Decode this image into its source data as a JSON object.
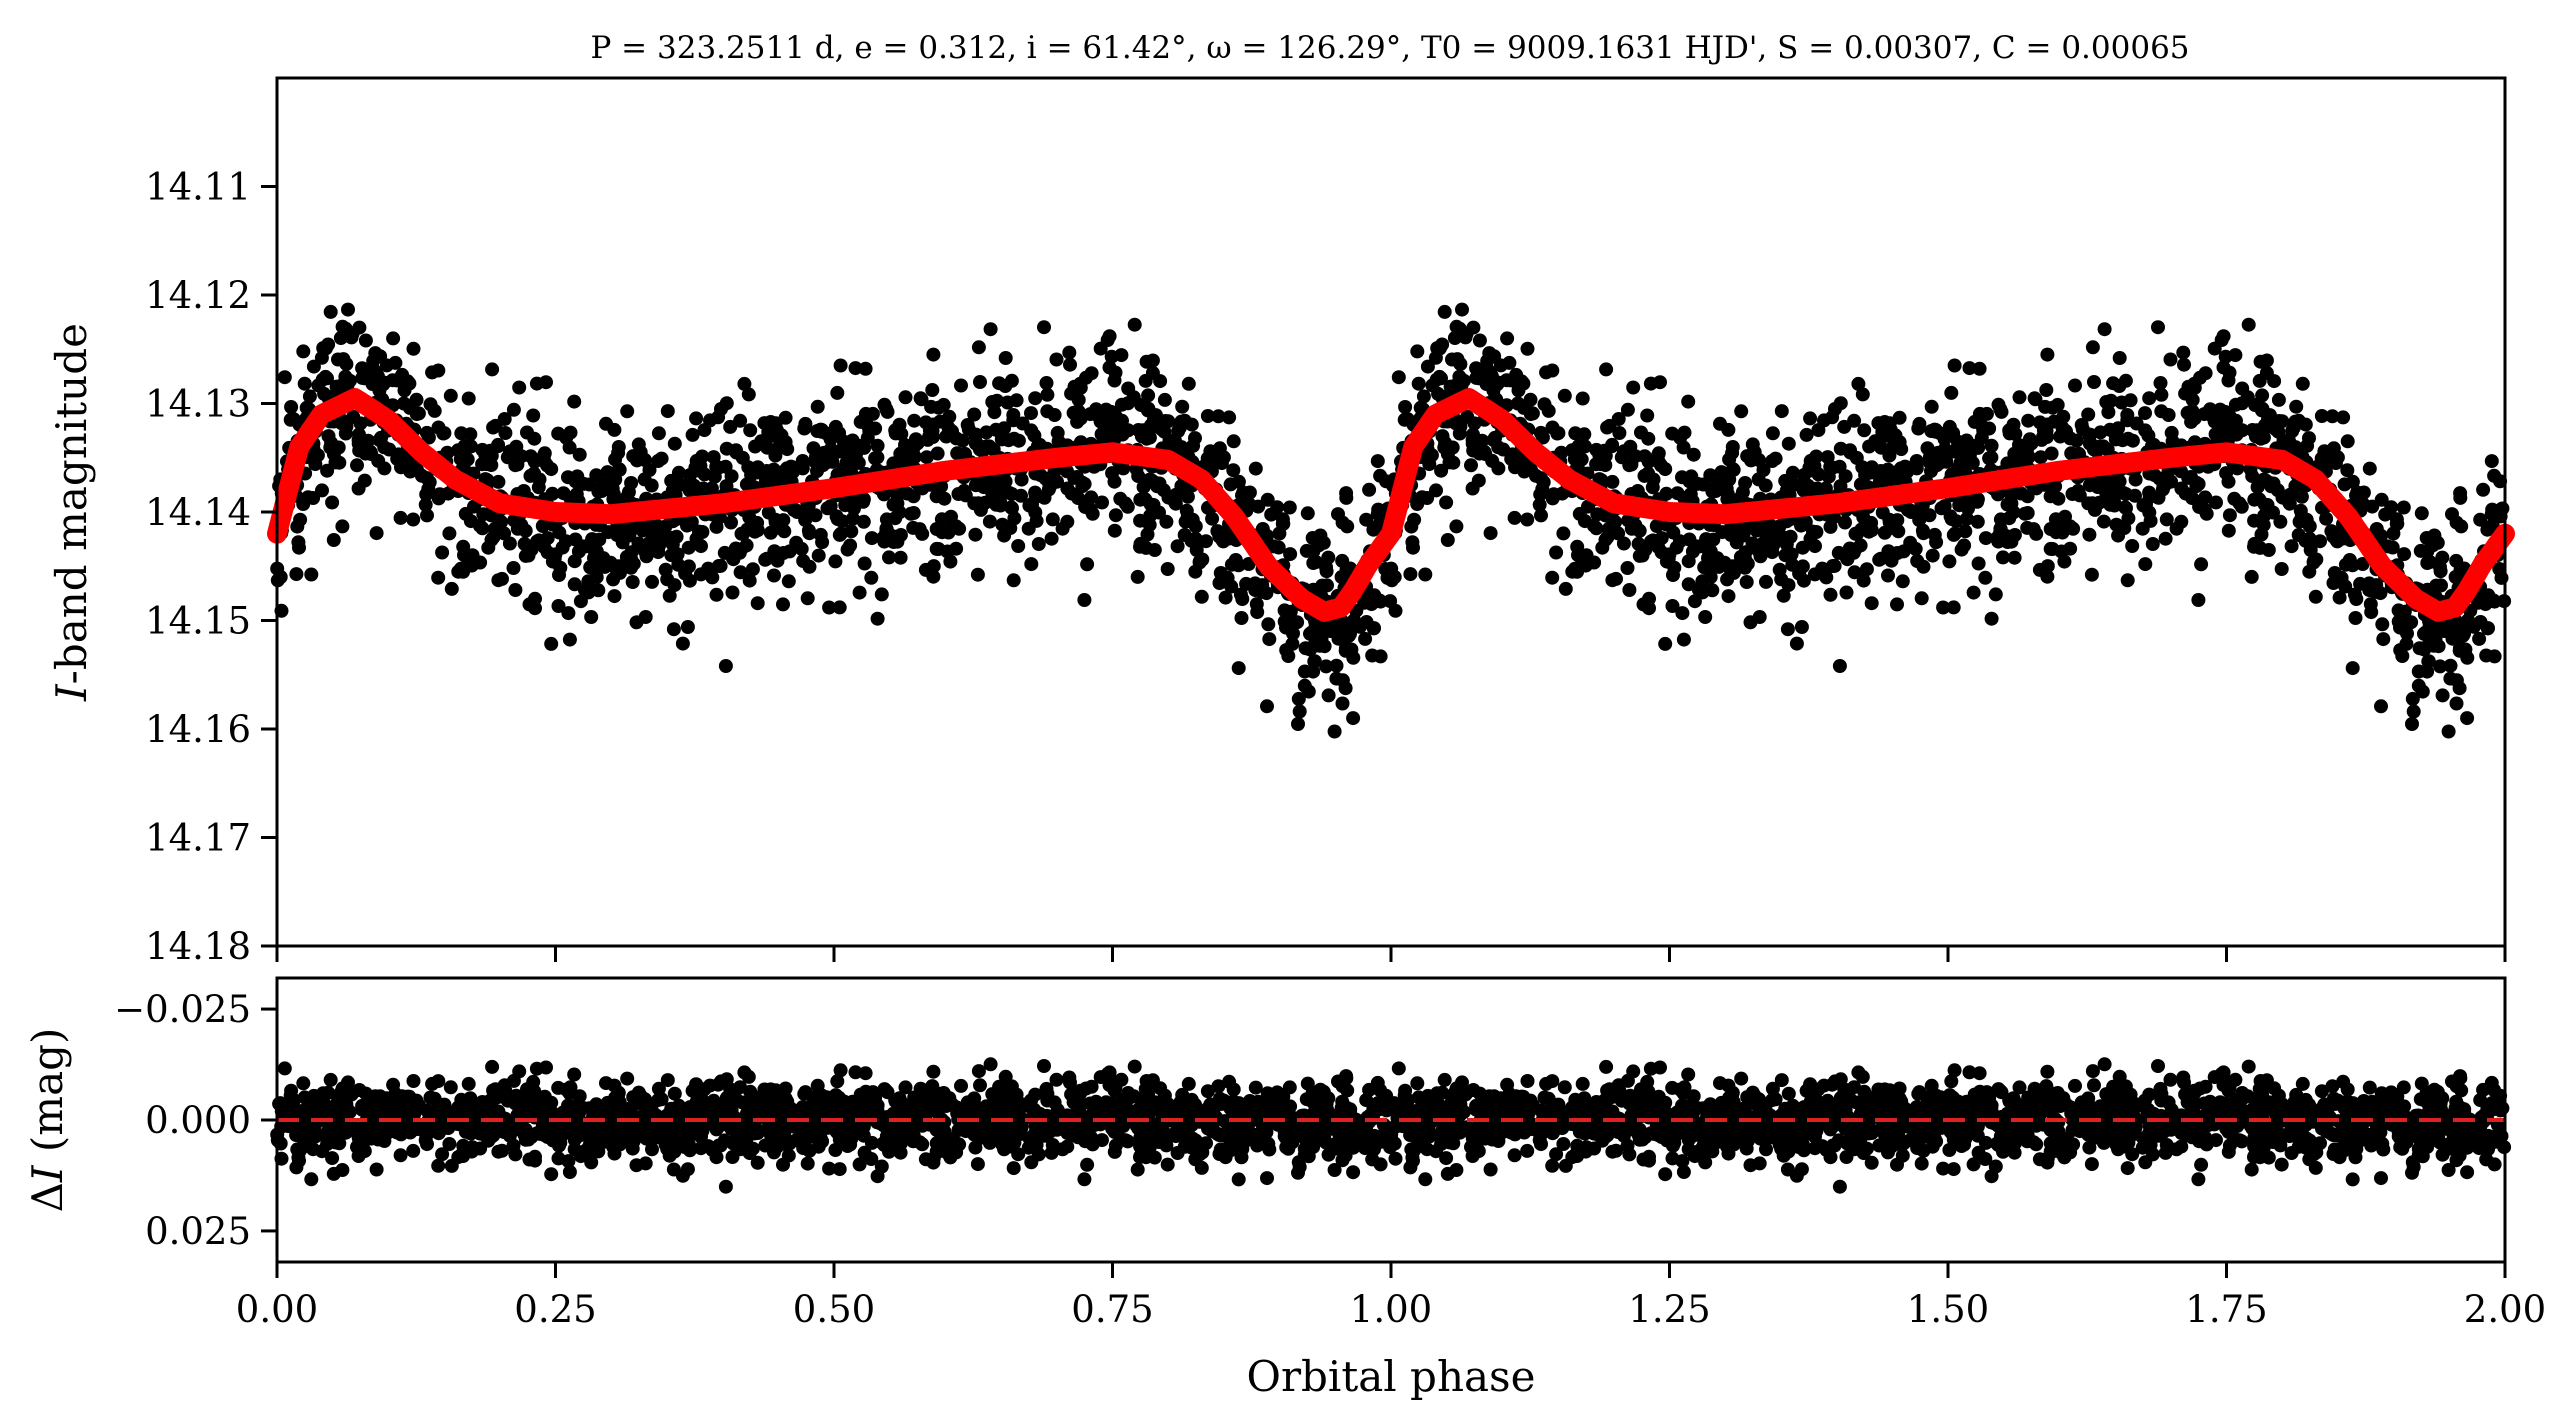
{
  "chart_data": [
    {
      "type": "scatter",
      "panel": "light-curve",
      "title": "P = 323.2511 d, e = 0.312, i = 61.42°, ω = 126.29°, T0 = 9009.1631 HJD', S = 0.00307, C = 0.00065",
      "xlabel": "",
      "ylabel": "I-band magnitude",
      "ylabel_italic_part": "I",
      "ylabel_rest": "-band magnitude",
      "xlim": [
        0.0,
        2.0
      ],
      "ylim": [
        14.18,
        14.1
      ],
      "y_inverted": true,
      "y_ticks": [
        "14.11",
        "14.12",
        "14.13",
        "14.14",
        "14.15",
        "14.16",
        "14.17",
        "14.18"
      ],
      "y_tick_values": [
        14.11,
        14.12,
        14.13,
        14.14,
        14.15,
        14.16,
        14.17,
        14.18
      ],
      "x_ticks_labeled": false,
      "series": [
        {
          "kind": "observations",
          "marker": "filled-circle",
          "color": "#000000",
          "approx_points_per_phase_cycle": 1600,
          "phase_repeated": true,
          "scatter_sigma_mag": 0.0045
        },
        {
          "kind": "model",
          "color": "#ff0000",
          "x": [
            0.0,
            0.02,
            0.04,
            0.07,
            0.1,
            0.13,
            0.16,
            0.2,
            0.25,
            0.3,
            0.4,
            0.5,
            0.6,
            0.7,
            0.75,
            0.8,
            0.83,
            0.86,
            0.89,
            0.92,
            0.94,
            0.955,
            0.965,
            0.98,
            1.0
          ],
          "y": [
            14.142,
            14.134,
            14.131,
            14.1295,
            14.1315,
            14.1345,
            14.137,
            14.1392,
            14.14,
            14.1402,
            14.1392,
            14.1378,
            14.1362,
            14.135,
            14.1345,
            14.1352,
            14.137,
            14.1405,
            14.145,
            14.148,
            14.1492,
            14.1488,
            14.1474,
            14.1448,
            14.142
          ]
        }
      ]
    },
    {
      "type": "scatter",
      "panel": "residuals",
      "xlabel": "Orbital phase",
      "ylabel": "ΔI (mag)",
      "ylabel_delta": "Δ",
      "ylabel_italic_part": "I",
      "ylabel_rest": " (mag)",
      "xlim": [
        0.0,
        2.0
      ],
      "ylim": [
        0.032,
        -0.032
      ],
      "y_inverted": true,
      "y_ticks": [
        "−0.025",
        "0.000",
        "0.025"
      ],
      "y_tick_values": [
        -0.025,
        0.0,
        0.025
      ],
      "x_ticks": [
        "0.00",
        "0.25",
        "0.50",
        "0.75",
        "1.00",
        "1.25",
        "1.50",
        "1.75",
        "2.00"
      ],
      "x_tick_values": [
        0.0,
        0.25,
        0.5,
        0.75,
        1.0,
        1.25,
        1.5,
        1.75,
        2.0
      ],
      "series": [
        {
          "kind": "residuals",
          "marker": "filled-circle",
          "color": "#000000",
          "scatter_sigma_mag": 0.0045,
          "range_mag": [
            -0.022,
            0.022
          ]
        },
        {
          "kind": "zero-line",
          "style": "dashed",
          "color": "#dd2222",
          "y": 0.0
        }
      ]
    }
  ]
}
